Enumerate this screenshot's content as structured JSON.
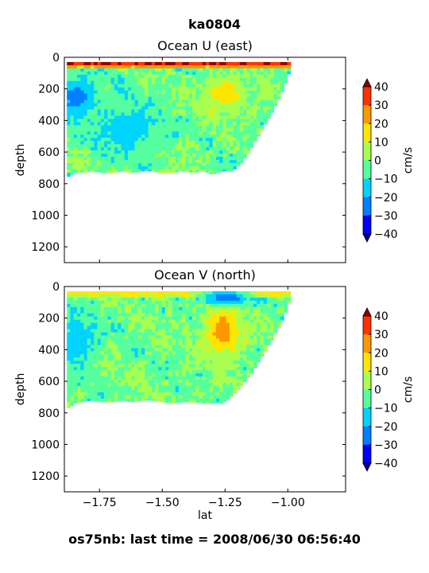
{
  "figure": {
    "title": "ka0804",
    "footer": "os75nb: last time = 2008/06/30 06:56:40",
    "colors": {
      "levels": [
        -40,
        -30,
        -20,
        -10,
        0,
        10,
        20,
        30,
        40
      ],
      "band_colors": [
        "#0000ff",
        "#0080ff",
        "#00d4ff",
        "#55ff9f",
        "#a8ff4f",
        "#ffe600",
        "#ff9800",
        "#ff3300"
      ],
      "under_color": "#00008b",
      "over_color": "#8b0000"
    }
  },
  "chart_data": [
    {
      "type": "heatmap",
      "title": "Ocean U (east)",
      "xlabel": "",
      "ylabel": "depth",
      "xlim": [
        -1.89,
        -0.77
      ],
      "ylim": [
        1300,
        0
      ],
      "ytick_labels": [
        "0",
        "200",
        "400",
        "600",
        "800",
        "1000",
        "1200"
      ],
      "xtick_labels": [],
      "colorbar": {
        "label": "cm/s",
        "tick_labels": [
          "40",
          "30",
          "20",
          "10",
          "0",
          "−10",
          "−20",
          "−30",
          "−40"
        ]
      },
      "data_extent": {
        "lat": [
          -1.88,
          -1.87,
          -1.85,
          -1.82,
          -1.78,
          -1.74,
          -1.7,
          -1.66,
          -1.62,
          -1.58,
          -1.54,
          -1.5,
          -1.46,
          -1.42,
          -1.38,
          -1.34,
          -1.3,
          -1.26,
          -1.22,
          -1.18,
          -1.14,
          -1.1,
          -1.06,
          -1.02,
          -0.99
        ],
        "max_depth": [
          740,
          760,
          730,
          730,
          720,
          730,
          730,
          720,
          730,
          720,
          720,
          730,
          730,
          720,
          730,
          720,
          740,
          720,
          720,
          660,
          560,
          450,
          340,
          210,
          80
        ]
      },
      "features": [
        {
          "lat_range": [
            -1.88,
            -0.99
          ],
          "depth_range": [
            30,
            55
          ],
          "value": 40,
          "description": "surface eastward jet"
        },
        {
          "lat_range": [
            -1.88,
            -1.8
          ],
          "depth_range": [
            150,
            350
          ],
          "value": -25
        },
        {
          "lat_range": [
            -1.72,
            -1.55
          ],
          "depth_range": [
            300,
            600
          ],
          "value": -15
        },
        {
          "lat_range": [
            -1.3,
            -1.2
          ],
          "depth_range": [
            150,
            320
          ],
          "value": 15
        }
      ]
    },
    {
      "type": "heatmap",
      "title": "Ocean V (north)",
      "xlabel": "lat",
      "ylabel": "depth",
      "xlim": [
        -1.89,
        -0.77
      ],
      "ylim": [
        1300,
        0
      ],
      "ytick_labels": [
        "0",
        "200",
        "400",
        "600",
        "800",
        "1000",
        "1200"
      ],
      "xticks": [
        -1.75,
        -1.5,
        -1.25,
        -1.0
      ],
      "xtick_labels": [
        "−1.75",
        "−1.50",
        "−1.25",
        "−1.00"
      ],
      "colorbar": {
        "label": "cm/s",
        "tick_labels": [
          "40",
          "30",
          "20",
          "10",
          "0",
          "−10",
          "−20",
          "−30",
          "−40"
        ]
      },
      "data_extent": {
        "lat": [
          -1.88,
          -1.87,
          -1.85,
          -1.82,
          -1.78,
          -1.74,
          -1.7,
          -1.66,
          -1.62,
          -1.58,
          -1.54,
          -1.5,
          -1.46,
          -1.42,
          -1.38,
          -1.34,
          -1.3,
          -1.26,
          -1.22,
          -1.18,
          -1.14,
          -1.1,
          -1.06,
          -1.02,
          -0.99
        ],
        "max_depth": [
          760,
          770,
          740,
          730,
          720,
          730,
          730,
          720,
          730,
          720,
          720,
          730,
          740,
          730,
          730,
          740,
          740,
          740,
          690,
          620,
          540,
          430,
          330,
          210,
          80
        ]
      },
      "features": [
        {
          "lat_range": [
            -1.88,
            -0.99
          ],
          "depth_range": [
            30,
            55
          ],
          "value": 15,
          "description": "surface band"
        },
        {
          "lat_range": [
            -1.3,
            -1.2
          ],
          "depth_range": [
            30,
            110
          ],
          "value": -35,
          "description": "strong southward core"
        },
        {
          "lat_range": [
            -1.3,
            -1.22
          ],
          "depth_range": [
            150,
            420
          ],
          "value": 25
        },
        {
          "lat_range": [
            -1.88,
            -1.8
          ],
          "depth_range": [
            180,
            500
          ],
          "value": -15
        }
      ]
    }
  ]
}
